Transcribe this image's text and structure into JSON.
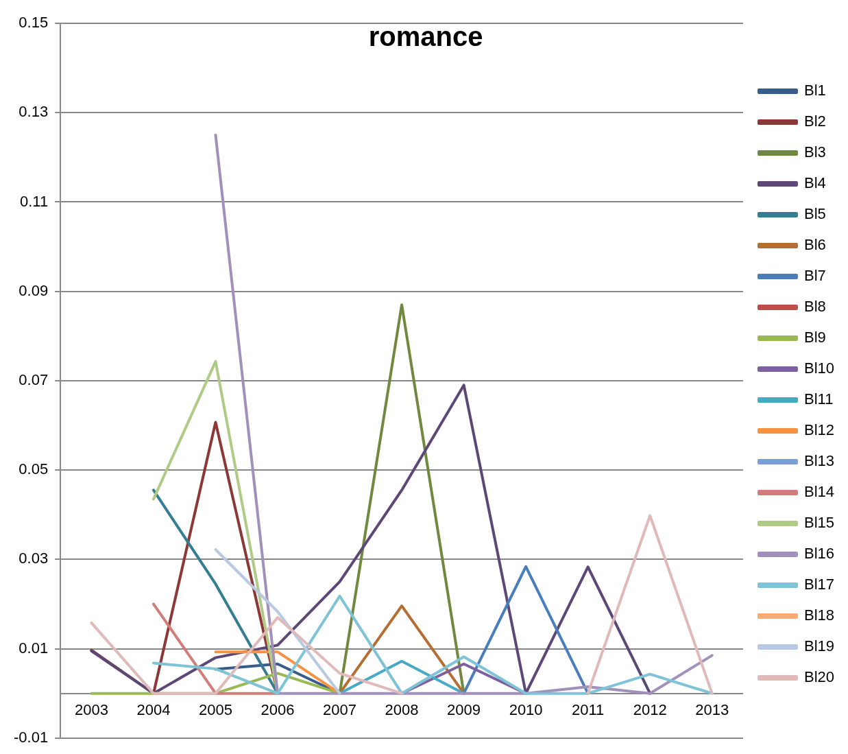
{
  "chart_data": {
    "type": "line",
    "title": "romance",
    "categories": [
      "2003",
      "2004",
      "2005",
      "2006",
      "2007",
      "2008",
      "2009",
      "2010",
      "2011",
      "2012",
      "2013"
    ],
    "ylim": [
      -0.01,
      0.15
    ],
    "yticks": [
      -0.01,
      0.01,
      0.03,
      0.05,
      0.07,
      0.09,
      0.11,
      0.13,
      0.15
    ],
    "grid": "y",
    "legend": "right",
    "marker": "none",
    "line_style": "solid",
    "series": [
      {
        "name": "Bl1",
        "color": "#385d8a",
        "values": [
          null,
          null,
          0.0054,
          0.0066,
          0,
          null,
          null,
          null,
          null,
          null,
          null
        ]
      },
      {
        "name": "Bl2",
        "color": "#8c3836",
        "values": [
          0.0097,
          0,
          0.0607,
          0,
          null,
          null,
          null,
          null,
          null,
          null,
          null
        ]
      },
      {
        "name": "Bl3",
        "color": "#71893f",
        "values": [
          null,
          null,
          null,
          null,
          0,
          0.087,
          0,
          null,
          null,
          null,
          null
        ]
      },
      {
        "name": "Bl4",
        "color": "#5c4776",
        "values": [
          0.0095,
          0,
          0.008,
          0.0108,
          0.025,
          0.0455,
          0.069,
          0,
          0.0283,
          0,
          null
        ]
      },
      {
        "name": "Bl5",
        "color": "#357d91",
        "values": [
          null,
          0.0455,
          0.0245,
          0,
          null,
          null,
          null,
          null,
          null,
          null,
          null
        ]
      },
      {
        "name": "Bl6",
        "color": "#b66d31",
        "values": [
          null,
          null,
          null,
          null,
          0,
          0.0196,
          0,
          null,
          null,
          null,
          null
        ]
      },
      {
        "name": "Bl7",
        "color": "#4a7ebb",
        "values": [
          null,
          null,
          null,
          null,
          null,
          null,
          0,
          0.0284,
          0,
          null,
          null
        ]
      },
      {
        "name": "Bl8",
        "color": "#be4b48",
        "values": [
          null,
          null,
          null,
          null,
          null,
          null,
          null,
          null,
          null,
          null,
          null
        ]
      },
      {
        "name": "Bl9",
        "color": "#98b954",
        "values": [
          0,
          0,
          0,
          0.0045,
          0,
          null,
          null,
          null,
          null,
          null,
          null
        ]
      },
      {
        "name": "Bl10",
        "color": "#7d60a0",
        "values": [
          null,
          null,
          null,
          null,
          null,
          0,
          0.0066,
          0,
          null,
          null,
          null
        ]
      },
      {
        "name": "Bl11",
        "color": "#46aac5",
        "values": [
          null,
          null,
          null,
          null,
          0,
          0.0072,
          0,
          null,
          null,
          null,
          null
        ]
      },
      {
        "name": "Bl12",
        "color": "#f69240",
        "values": [
          null,
          null,
          0.0093,
          0.0093,
          0,
          null,
          null,
          null,
          null,
          null,
          null
        ]
      },
      {
        "name": "Bl13",
        "color": "#7c9fd3",
        "values": [
          null,
          null,
          null,
          null,
          null,
          null,
          null,
          null,
          null,
          null,
          null
        ]
      },
      {
        "name": "Bl14",
        "color": "#d37d7b",
        "values": [
          null,
          0.02,
          0,
          0,
          null,
          null,
          null,
          null,
          null,
          null,
          null
        ]
      },
      {
        "name": "Bl15",
        "color": "#b0cb86",
        "values": [
          null,
          0.0435,
          0.0743,
          0,
          null,
          null,
          null,
          null,
          null,
          null,
          null
        ]
      },
      {
        "name": "Bl16",
        "color": "#a18fbc",
        "values": [
          null,
          null,
          0.125,
          0,
          0,
          0,
          0,
          0,
          0.0015,
          0,
          0.0085
        ]
      },
      {
        "name": "Bl17",
        "color": "#7ec3d7",
        "values": [
          null,
          0.0068,
          0.0055,
          0,
          0.0218,
          0,
          0.0082,
          0,
          0,
          0.0043,
          0
        ]
      },
      {
        "name": "Bl18",
        "color": "#f9ab75",
        "values": [
          null,
          null,
          null,
          null,
          null,
          null,
          null,
          null,
          null,
          null,
          null
        ]
      },
      {
        "name": "Bl19",
        "color": "#b9c8e3",
        "values": [
          null,
          null,
          0.0322,
          0.0183,
          0,
          null,
          null,
          null,
          null,
          null,
          null
        ]
      },
      {
        "name": "Bl20",
        "color": "#e0b9b8",
        "values": [
          0.0158,
          0,
          0,
          0.017,
          0.0045,
          0,
          null,
          null,
          0,
          0.0398,
          0
        ]
      }
    ]
  }
}
